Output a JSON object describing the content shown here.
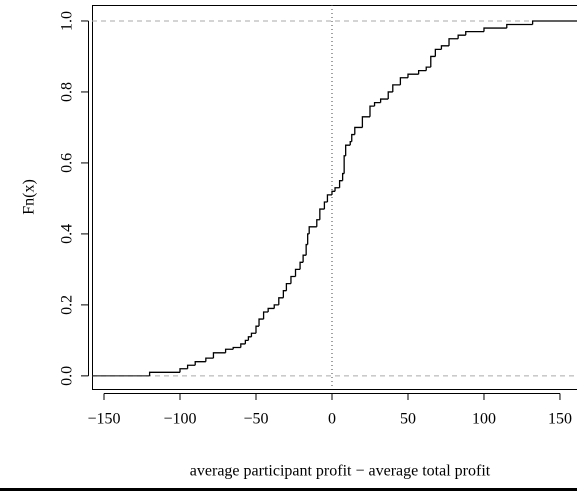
{
  "chart_data": {
    "type": "ecdf",
    "xlabel": "average participant profit − average total profit",
    "ylabel": "Fn(x)",
    "color": "#000000",
    "xlim": [
      -157.9,
      161.2
    ],
    "ylim": [
      -0.037,
      1.045
    ],
    "xticks": [
      {
        "value": -150,
        "label": "−150"
      },
      {
        "value": -100,
        "label": "−100"
      },
      {
        "value": -50,
        "label": "−50"
      },
      0,
      50,
      100,
      150
    ],
    "yticks": [
      {
        "value": 0,
        "label": "0.0"
      },
      0.2,
      0.4,
      0.6,
      0.8,
      {
        "value": 1,
        "label": "1.0"
      }
    ],
    "x": [
      -120,
      -100,
      -95,
      -90,
      -83,
      -78,
      -70,
      -65,
      -60,
      -57,
      -55,
      -53,
      -50,
      -48,
      -45,
      -42,
      -38,
      -35,
      -32,
      -30,
      -27,
      -24,
      -21,
      -19,
      -17,
      -16,
      -15,
      -10,
      -8,
      -5,
      -3,
      0,
      2,
      5,
      7,
      8,
      9,
      12,
      13,
      15,
      20,
      25,
      28,
      32,
      37,
      40,
      45,
      50,
      57,
      62,
      65,
      68,
      72,
      77,
      83,
      88,
      100,
      115,
      132
    ],
    "values": [
      0.01,
      0.02,
      0.03,
      0.04,
      0.05,
      0.065,
      0.075,
      0.08,
      0.09,
      0.1,
      0.11,
      0.12,
      0.14,
      0.16,
      0.18,
      0.19,
      0.2,
      0.22,
      0.24,
      0.26,
      0.28,
      0.3,
      0.32,
      0.34,
      0.37,
      0.4,
      0.42,
      0.44,
      0.47,
      0.49,
      0.51,
      0.52,
      0.53,
      0.55,
      0.57,
      0.62,
      0.65,
      0.66,
      0.68,
      0.7,
      0.73,
      0.76,
      0.77,
      0.78,
      0.8,
      0.82,
      0.84,
      0.85,
      0.86,
      0.87,
      0.9,
      0.92,
      0.93,
      0.95,
      0.96,
      0.97,
      0.98,
      0.99,
      1.0
    ]
  }
}
